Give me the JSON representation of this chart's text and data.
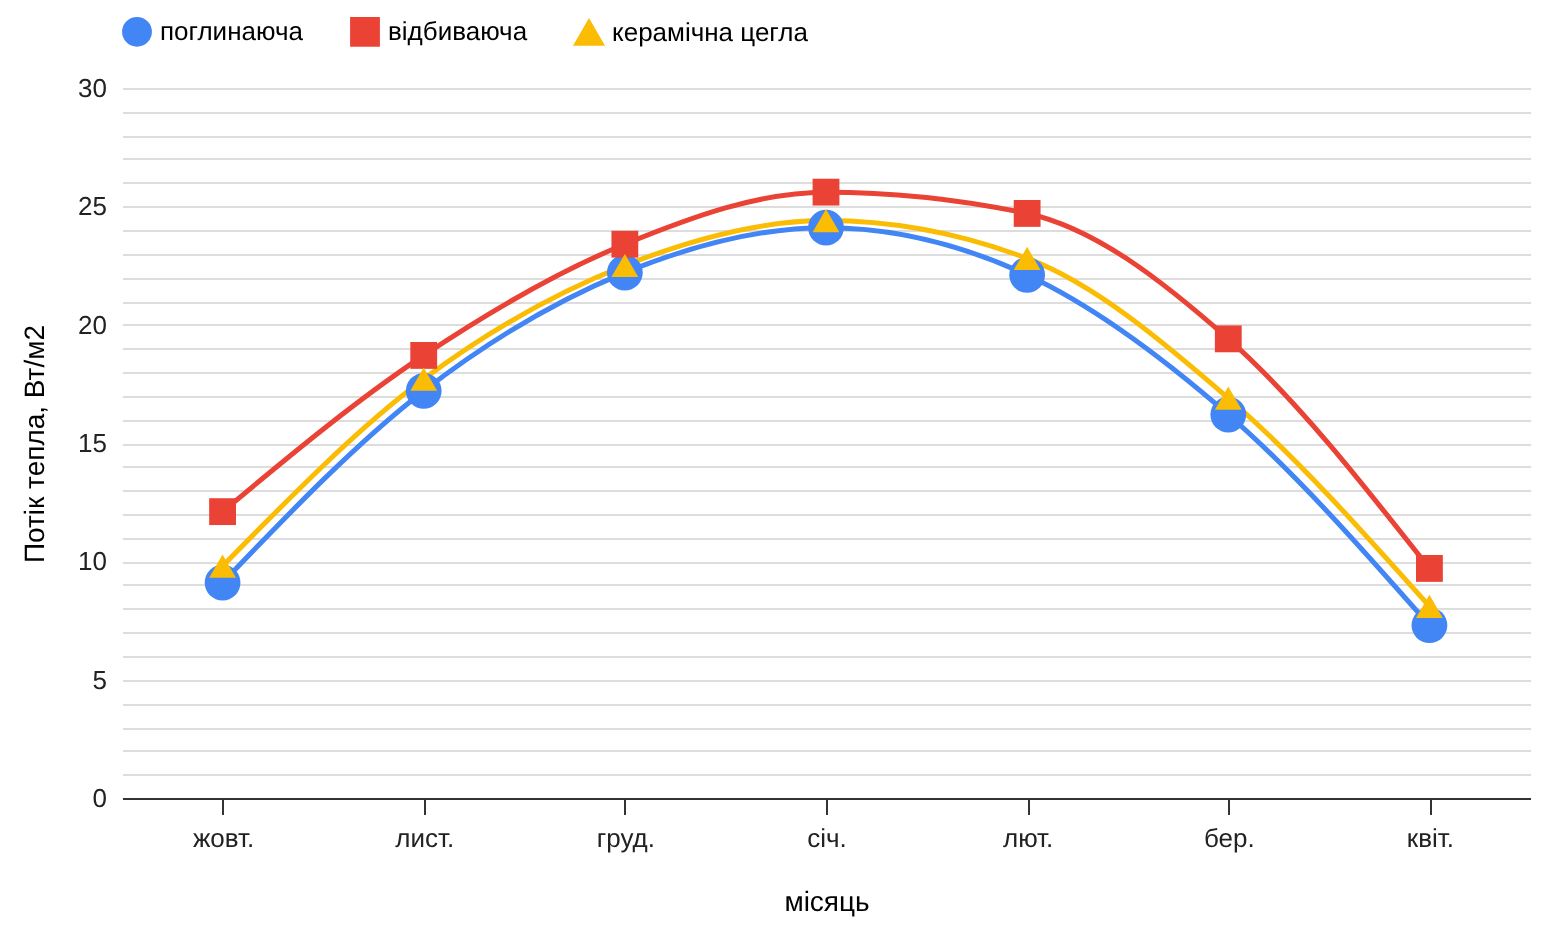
{
  "chart_data": {
    "type": "line",
    "xlabel": "місяць",
    "ylabel": "Потік тепла, Вт/м2",
    "categories": [
      "жовт.",
      "лист.",
      "груд.",
      "січ.",
      "лют.",
      "бер.",
      "квіт."
    ],
    "series": [
      {
        "name": "поглинаюча",
        "color": "#4285f4",
        "marker": "circle",
        "values": [
          9.1,
          17.2,
          22.2,
          24.1,
          22.1,
          16.2,
          7.3
        ]
      },
      {
        "name": "відбиваюча",
        "color": "#ea4335",
        "marker": "square",
        "values": [
          12.1,
          18.7,
          23.4,
          25.6,
          24.7,
          19.4,
          9.7
        ]
      },
      {
        "name": "керамічна цегла",
        "color": "#fbbc04",
        "marker": "triangle",
        "values": [
          9.8,
          17.7,
          22.5,
          24.4,
          22.8,
          16.9,
          8.1
        ]
      }
    ],
    "ylim": [
      0,
      30
    ],
    "yticks": [
      0,
      {
        "value": 1,
        "label": null
      },
      {
        "value": 2,
        "label": null
      },
      {
        "value": 3,
        "label": null
      },
      {
        "value": 4,
        "label": null
      },
      5,
      {
        "value": 6,
        "label": null
      },
      {
        "value": 7,
        "label": null
      },
      {
        "value": 8,
        "label": null
      },
      {
        "value": 9,
        "label": null
      },
      10,
      {
        "value": 11,
        "label": null
      },
      {
        "value": 12,
        "label": null
      },
      {
        "value": 13,
        "label": null
      },
      {
        "value": 14,
        "label": null
      },
      15,
      {
        "value": 16,
        "label": null
      },
      {
        "value": 17,
        "label": null
      },
      {
        "value": 18,
        "label": null
      },
      {
        "value": 19,
        "label": null
      },
      20,
      {
        "value": 21,
        "label": null
      },
      {
        "value": 22,
        "label": null
      },
      {
        "value": 23,
        "label": null
      },
      {
        "value": 24,
        "label": null
      },
      25,
      {
        "value": 26,
        "label": null
      },
      {
        "value": 27,
        "label": null
      },
      {
        "value": 28,
        "label": null
      },
      {
        "value": 29,
        "label": null
      },
      30
    ],
    "grid": "y",
    "legend": "top",
    "line_style": "solid"
  }
}
